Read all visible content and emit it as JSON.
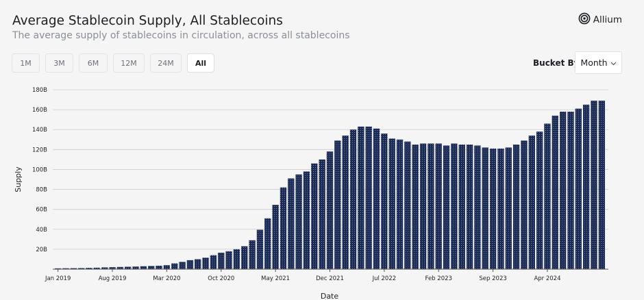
{
  "header": {
    "title": "Average Stablecoin Supply, All Stablecoins",
    "subtitle": "The average supply of stablecoins in circulation, across all stablecoins",
    "brand": "Allium"
  },
  "controls": {
    "range_tabs": [
      {
        "label": "1M",
        "active": false
      },
      {
        "label": "3M",
        "active": false
      },
      {
        "label": "6M",
        "active": false
      },
      {
        "label": "12M",
        "active": false
      },
      {
        "label": "24M",
        "active": false
      },
      {
        "label": "All",
        "active": true
      }
    ],
    "bucket_label": "Bucket By",
    "bucket_value": "Month"
  },
  "colors": {
    "bar_fill": "#1b2a52",
    "bar_dots": "#8fa0c8",
    "grid": "#c9ccd2"
  },
  "chart_data": {
    "type": "bar",
    "xlabel": "Date",
    "ylabel": "Supply",
    "ylim": [
      0,
      180000000000
    ],
    "yticks": [
      {
        "value": 20000000000,
        "label": "20B"
      },
      {
        "value": 40000000000,
        "label": "40B"
      },
      {
        "value": 60000000000,
        "label": "60B"
      },
      {
        "value": 80000000000,
        "label": "80B"
      },
      {
        "value": 100000000000,
        "label": "100B"
      },
      {
        "value": 120000000000,
        "label": "120B"
      },
      {
        "value": 140000000000,
        "label": "140B"
      },
      {
        "value": 160000000000,
        "label": "160B"
      },
      {
        "value": 180000000000,
        "label": "180B"
      }
    ],
    "xticks": [
      {
        "date": "2019-01",
        "label": "Jan 2019"
      },
      {
        "date": "2019-08",
        "label": "Aug 2019"
      },
      {
        "date": "2020-03",
        "label": "Mar 2020"
      },
      {
        "date": "2020-10",
        "label": "Oct 2020"
      },
      {
        "date": "2021-05",
        "label": "May 2021"
      },
      {
        "date": "2021-12",
        "label": "Dec 2021"
      },
      {
        "date": "2022-07",
        "label": "Jul 2022"
      },
      {
        "date": "2023-02",
        "label": "Feb 2023"
      },
      {
        "date": "2023-09",
        "label": "Sep 2023"
      },
      {
        "date": "2024-04",
        "label": "Apr 2024"
      }
    ],
    "grid": true,
    "legend": "none",
    "categories": [
      "2019-01",
      "2019-02",
      "2019-03",
      "2019-04",
      "2019-05",
      "2019-06",
      "2019-07",
      "2019-08",
      "2019-09",
      "2019-10",
      "2019-11",
      "2019-12",
      "2020-01",
      "2020-02",
      "2020-03",
      "2020-04",
      "2020-05",
      "2020-06",
      "2020-07",
      "2020-08",
      "2020-09",
      "2020-10",
      "2020-11",
      "2020-12",
      "2021-01",
      "2021-02",
      "2021-03",
      "2021-04",
      "2021-05",
      "2021-06",
      "2021-07",
      "2021-08",
      "2021-09",
      "2021-10",
      "2021-11",
      "2021-12",
      "2022-01",
      "2022-02",
      "2022-03",
      "2022-04",
      "2022-05",
      "2022-06",
      "2022-07",
      "2022-08",
      "2022-09",
      "2022-10",
      "2022-11",
      "2022-12",
      "2023-01",
      "2023-02",
      "2023-03",
      "2023-04",
      "2023-05",
      "2023-06",
      "2023-07",
      "2023-08",
      "2023-09",
      "2023-10",
      "2023-11",
      "2023-12",
      "2024-01",
      "2024-02",
      "2024-03",
      "2024-04",
      "2024-05",
      "2024-06",
      "2024-07",
      "2024-08",
      "2024-09",
      "2024-10",
      "2024-11"
    ],
    "values": [
      800000000,
      900000000,
      1000000000,
      1100000000,
      1300000000,
      1500000000,
      1800000000,
      2000000000,
      2200000000,
      2400000000,
      2600000000,
      2900000000,
      3200000000,
      3500000000,
      4000000000,
      5800000000,
      7300000000,
      9000000000,
      10000000000,
      11500000000,
      14000000000,
      16500000000,
      18000000000,
      20000000000,
      23000000000,
      29000000000,
      39500000000,
      51000000000,
      64500000000,
      82000000000,
      91000000000,
      95000000000,
      98000000000,
      106000000000,
      110000000000,
      118000000000,
      129000000000,
      134000000000,
      140000000000,
      143000000000,
      143000000000,
      141000000000,
      136000000000,
      131000000000,
      130000000000,
      128000000000,
      125000000000,
      126000000000,
      126000000000,
      126000000000,
      124000000000,
      126000000000,
      125000000000,
      125000000000,
      124000000000,
      122000000000,
      121000000000,
      121000000000,
      122000000000,
      125000000000,
      129000000000,
      134000000000,
      138000000000,
      146000000000,
      154000000000,
      158000000000,
      158000000000,
      161000000000,
      165000000000,
      169000000000,
      169000000000
    ]
  }
}
